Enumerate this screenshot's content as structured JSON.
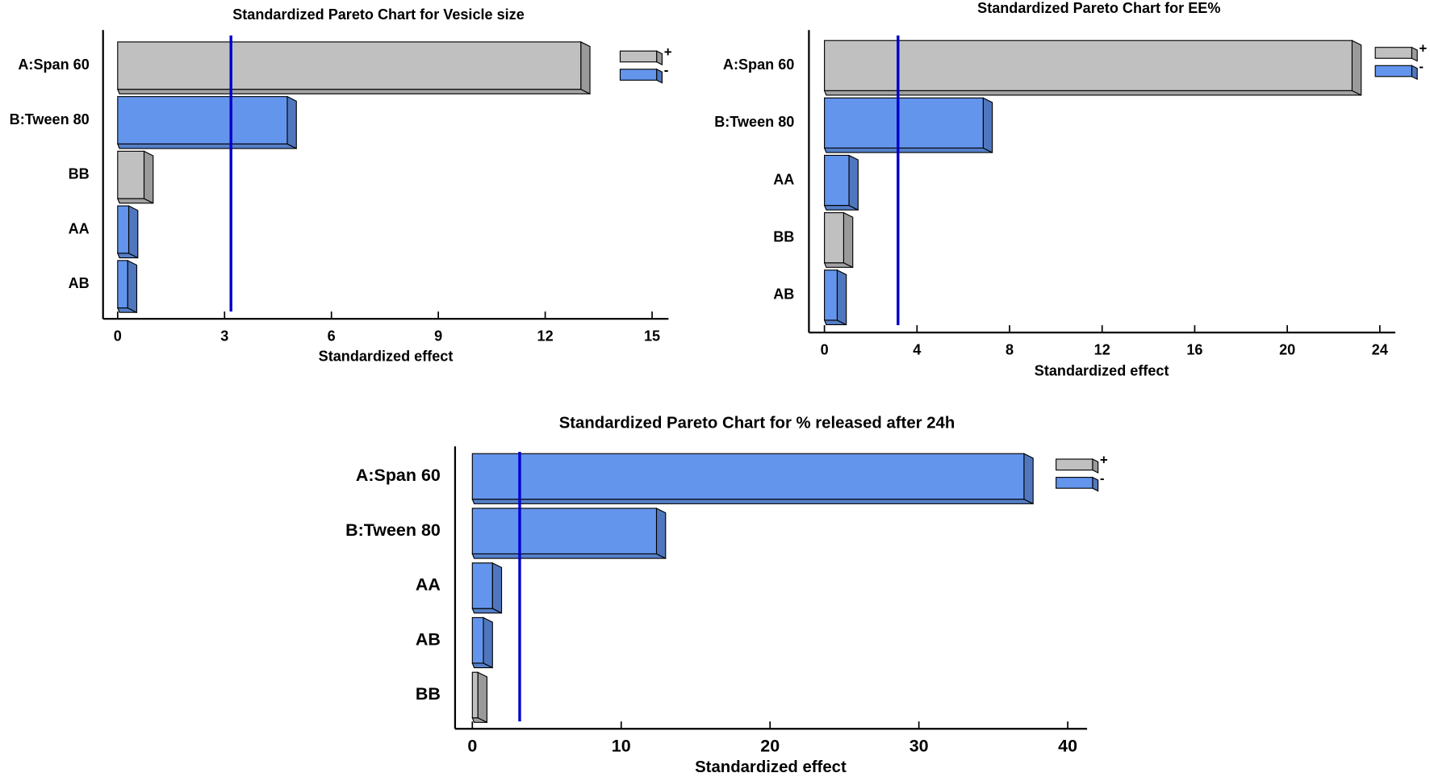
{
  "chart_data": [
    {
      "type": "bar",
      "title": "Standardized Pareto Chart for Vesicle size",
      "categories": [
        "A:Span 60",
        "B:Tween 80",
        "BB",
        "AA",
        "AB"
      ],
      "values": [
        13.0,
        4.76,
        0.74,
        0.31,
        0.28
      ],
      "colors": [
        "#c0c0c0",
        "#6495ed",
        "#c0c0c0",
        "#6495ed",
        "#6495ed"
      ],
      "xlabel": "Standardized effect",
      "xlim": [
        -0.41,
        15.46
      ],
      "xticks": [
        0,
        3,
        6,
        9,
        12,
        15
      ],
      "reference_line": 3.18,
      "reference_color": "#0000cd",
      "legend": [
        {
          "name": "+",
          "color": "#c0c0c0"
        },
        {
          "name": "-",
          "color": "#6495ed"
        }
      ]
    },
    {
      "type": "bar",
      "title": "Standardized Pareto Chart for EE%",
      "categories": [
        "A:Span 60",
        "B:Tween 80",
        "AA",
        "BB",
        "AB"
      ],
      "values": [
        22.8,
        6.86,
        1.06,
        0.83,
        0.55
      ],
      "colors": [
        "#c0c0c0",
        "#6495ed",
        "#6495ed",
        "#c0c0c0",
        "#6495ed"
      ],
      "xlabel": "Standardized effect",
      "xlim": [
        -0.67,
        24.67
      ],
      "xticks": [
        0,
        4,
        8,
        12,
        16,
        20,
        24
      ],
      "reference_line": 3.18,
      "reference_color": "#0000cd",
      "legend": [
        {
          "name": "+",
          "color": "#c0c0c0"
        },
        {
          "name": "-",
          "color": "#6495ed"
        }
      ]
    },
    {
      "type": "bar",
      "title": "Standardized Pareto Chart for % released after 24h",
      "categories": [
        "A:Span 60",
        "B:Tween 80",
        "AA",
        "AB",
        "BB"
      ],
      "values": [
        37.06,
        12.37,
        1.35,
        0.74,
        0.37
      ],
      "colors": [
        "#6495ed",
        "#6495ed",
        "#6495ed",
        "#6495ed",
        "#c0c0c0"
      ],
      "xlabel": "Standardized effect",
      "xlim": [
        -1.16,
        41.3
      ],
      "xticks": [
        0,
        10,
        20,
        30,
        40
      ],
      "reference_line": 3.18,
      "reference_color": "#0000cd",
      "legend": [
        {
          "name": "+",
          "color": "#c0c0c0"
        },
        {
          "name": "-",
          "color": "#6495ed"
        }
      ]
    }
  ]
}
